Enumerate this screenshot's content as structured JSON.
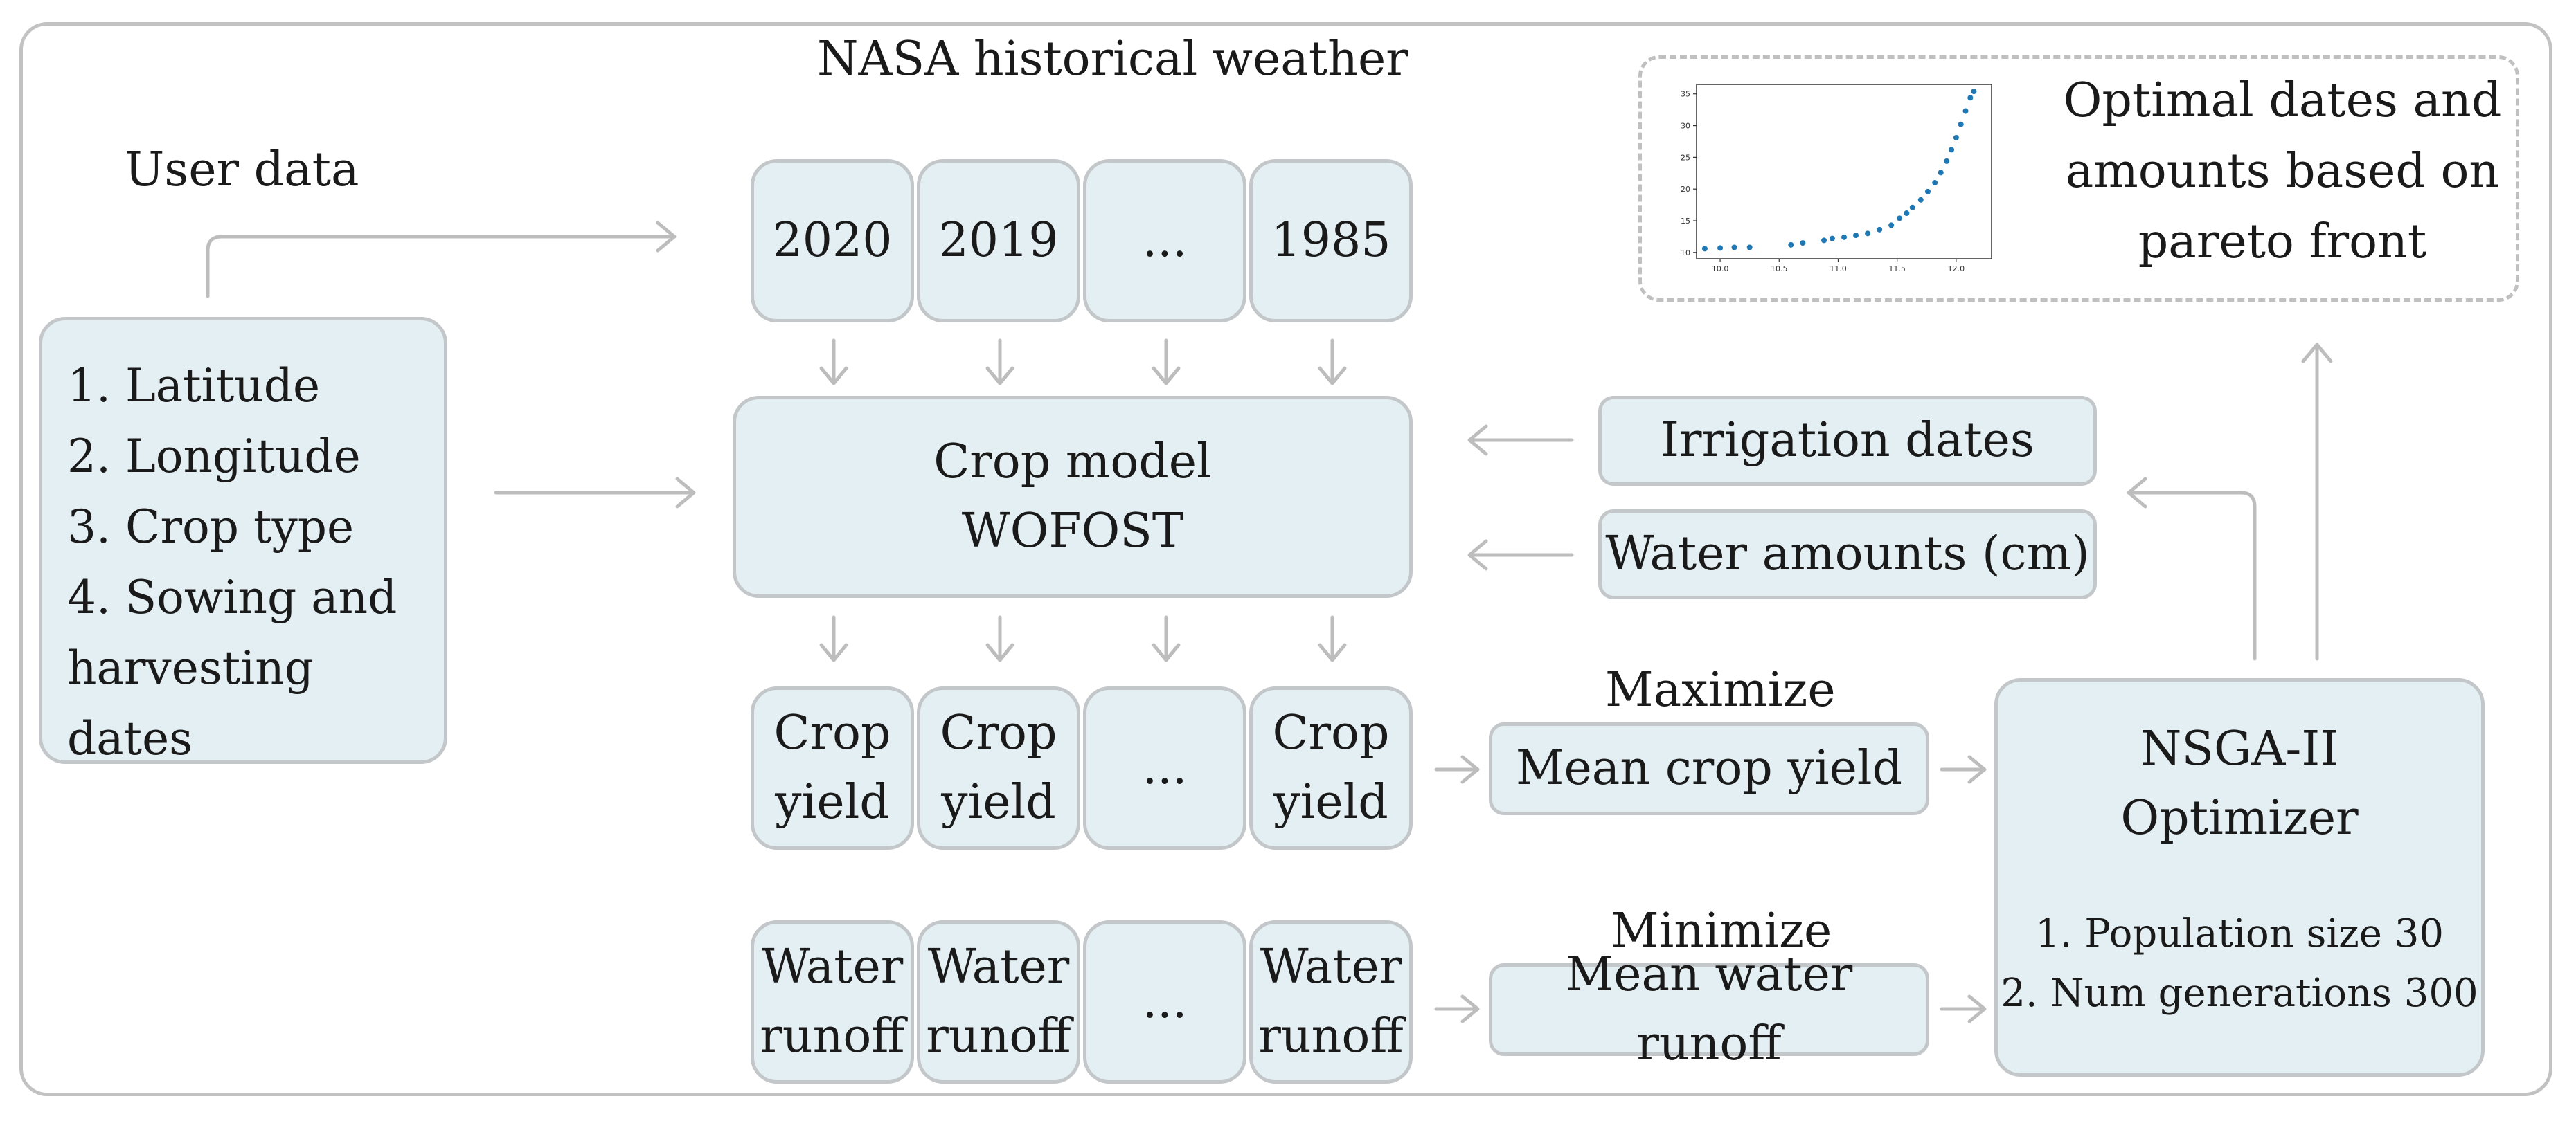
{
  "header": {
    "weather_label": "NASA historical weather",
    "user_label": "User data"
  },
  "user_data": {
    "items": [
      "1. Latitude",
      "2. Longitude",
      "3. Crop type",
      "4. Sowing and",
      "harvesting",
      "dates"
    ]
  },
  "years": [
    "2020",
    "2019",
    "...",
    "1985"
  ],
  "crop_model": {
    "line1": "Crop model",
    "line2": "WOFOST"
  },
  "inputs": {
    "irrigation": "Irrigation dates",
    "water": "Water amounts (cm)"
  },
  "crop_yield": {
    "line1": "Crop",
    "line2": "yield",
    "ellipsis": "..."
  },
  "water_runoff": {
    "line1": "Water",
    "line2": "runoff",
    "ellipsis": "..."
  },
  "objectives": {
    "maximize_label": "Maximize",
    "mean_yield": "Mean crop yield",
    "minimize_label": "Minimize",
    "mean_runoff": "Mean water runoff"
  },
  "optimizer": {
    "line1": "NSGA-II",
    "line2": "Optimizer",
    "param1": "1. Population size 30",
    "param2": "2. Num generations 300"
  },
  "output": {
    "line1": "Optimal dates and",
    "line2": "amounts based on",
    "line3": "pareto front"
  },
  "colors": {
    "box_fill": "#e3eff3",
    "box_border": "#c3c7c9",
    "arrow": "#bdbdbd",
    "dot": "#1f77b4"
  },
  "chart_data": {
    "type": "scatter",
    "x_ticks": [
      "10.0",
      "10.5",
      "11.0",
      "11.5",
      "12.0"
    ],
    "y_ticks": [
      "10",
      "15",
      "20",
      "25",
      "30",
      "35"
    ],
    "xlim": [
      9.8,
      12.3
    ],
    "ylim": [
      9,
      36.5
    ],
    "points": [
      [
        9.87,
        10.6
      ],
      [
        10.0,
        10.7
      ],
      [
        10.12,
        10.8
      ],
      [
        10.25,
        10.8
      ],
      [
        10.6,
        11.2
      ],
      [
        10.7,
        11.5
      ],
      [
        10.88,
        11.9
      ],
      [
        10.95,
        12.2
      ],
      [
        11.05,
        12.4
      ],
      [
        11.15,
        12.7
      ],
      [
        11.25,
        13.0
      ],
      [
        11.35,
        13.6
      ],
      [
        11.45,
        14.3
      ],
      [
        11.52,
        15.4
      ],
      [
        11.58,
        16.2
      ],
      [
        11.63,
        17.1
      ],
      [
        11.7,
        18.3
      ],
      [
        11.76,
        19.6
      ],
      [
        11.82,
        21.0
      ],
      [
        11.87,
        22.6
      ],
      [
        11.92,
        24.4
      ],
      [
        11.96,
        26.2
      ],
      [
        12.0,
        28.1
      ],
      [
        12.04,
        30.2
      ],
      [
        12.08,
        32.3
      ],
      [
        12.12,
        34.4
      ],
      [
        12.15,
        35.4
      ]
    ]
  }
}
